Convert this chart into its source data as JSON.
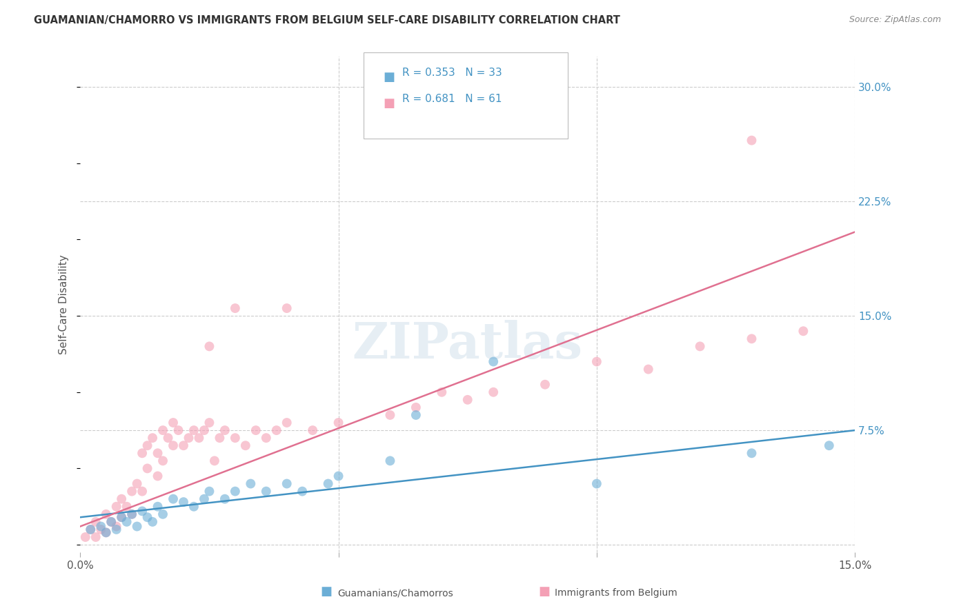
{
  "title": "GUAMANIAN/CHAMORRO VS IMMIGRANTS FROM BELGIUM SELF-CARE DISABILITY CORRELATION CHART",
  "source": "Source: ZipAtlas.com",
  "ylabel": "Self-Care Disability",
  "xlim": [
    0.0,
    0.15
  ],
  "ylim": [
    -0.005,
    0.32
  ],
  "yticks": [
    0.0,
    0.075,
    0.15,
    0.225,
    0.3
  ],
  "ytick_labels": [
    "",
    "7.5%",
    "15.0%",
    "22.5%",
    "30.0%"
  ],
  "xticks": [
    0.0,
    0.05,
    0.1,
    0.15
  ],
  "xtick_labels": [
    "0.0%",
    "",
    "",
    "15.0%"
  ],
  "legend_r1": "R = 0.353",
  "legend_n1": "N = 33",
  "legend_r2": "R = 0.681",
  "legend_n2": "N = 61",
  "blue_color": "#6baed6",
  "pink_color": "#f4a0b5",
  "line_blue": "#4393c3",
  "line_pink": "#e07090",
  "blue_scatter_x": [
    0.002,
    0.004,
    0.005,
    0.006,
    0.007,
    0.008,
    0.009,
    0.01,
    0.011,
    0.012,
    0.013,
    0.014,
    0.015,
    0.016,
    0.018,
    0.02,
    0.022,
    0.024,
    0.025,
    0.028,
    0.03,
    0.033,
    0.036,
    0.04,
    0.043,
    0.048,
    0.05,
    0.06,
    0.065,
    0.08,
    0.1,
    0.13,
    0.145
  ],
  "blue_scatter_y": [
    0.01,
    0.012,
    0.008,
    0.015,
    0.01,
    0.018,
    0.015,
    0.02,
    0.012,
    0.022,
    0.018,
    0.015,
    0.025,
    0.02,
    0.03,
    0.028,
    0.025,
    0.03,
    0.035,
    0.03,
    0.035,
    0.04,
    0.035,
    0.04,
    0.035,
    0.04,
    0.045,
    0.055,
    0.085,
    0.12,
    0.04,
    0.06,
    0.065
  ],
  "pink_scatter_x": [
    0.001,
    0.002,
    0.003,
    0.003,
    0.004,
    0.005,
    0.005,
    0.006,
    0.007,
    0.007,
    0.008,
    0.008,
    0.009,
    0.01,
    0.01,
    0.011,
    0.012,
    0.012,
    0.013,
    0.013,
    0.014,
    0.015,
    0.015,
    0.016,
    0.016,
    0.017,
    0.018,
    0.018,
    0.019,
    0.02,
    0.021,
    0.022,
    0.023,
    0.024,
    0.025,
    0.026,
    0.027,
    0.028,
    0.03,
    0.032,
    0.034,
    0.036,
    0.038,
    0.04,
    0.045,
    0.05,
    0.06,
    0.065,
    0.07,
    0.075,
    0.08,
    0.09,
    0.1,
    0.11,
    0.12,
    0.13,
    0.14,
    0.025,
    0.03,
    0.04,
    0.13
  ],
  "pink_scatter_y": [
    0.005,
    0.01,
    0.005,
    0.015,
    0.01,
    0.008,
    0.02,
    0.015,
    0.012,
    0.025,
    0.018,
    0.03,
    0.025,
    0.02,
    0.035,
    0.04,
    0.06,
    0.035,
    0.05,
    0.065,
    0.07,
    0.045,
    0.06,
    0.055,
    0.075,
    0.07,
    0.065,
    0.08,
    0.075,
    0.065,
    0.07,
    0.075,
    0.07,
    0.075,
    0.08,
    0.055,
    0.07,
    0.075,
    0.07,
    0.065,
    0.075,
    0.07,
    0.075,
    0.08,
    0.075,
    0.08,
    0.085,
    0.09,
    0.1,
    0.095,
    0.1,
    0.105,
    0.12,
    0.115,
    0.13,
    0.135,
    0.14,
    0.13,
    0.155,
    0.155,
    0.265
  ],
  "blue_line_x": [
    0.0,
    0.15
  ],
  "blue_line_y": [
    0.018,
    0.075
  ],
  "pink_line_x": [
    0.0,
    0.15
  ],
  "pink_line_y": [
    0.012,
    0.205
  ],
  "watermark": "ZIPatlas",
  "background_color": "#ffffff",
  "grid_color": "#cccccc"
}
